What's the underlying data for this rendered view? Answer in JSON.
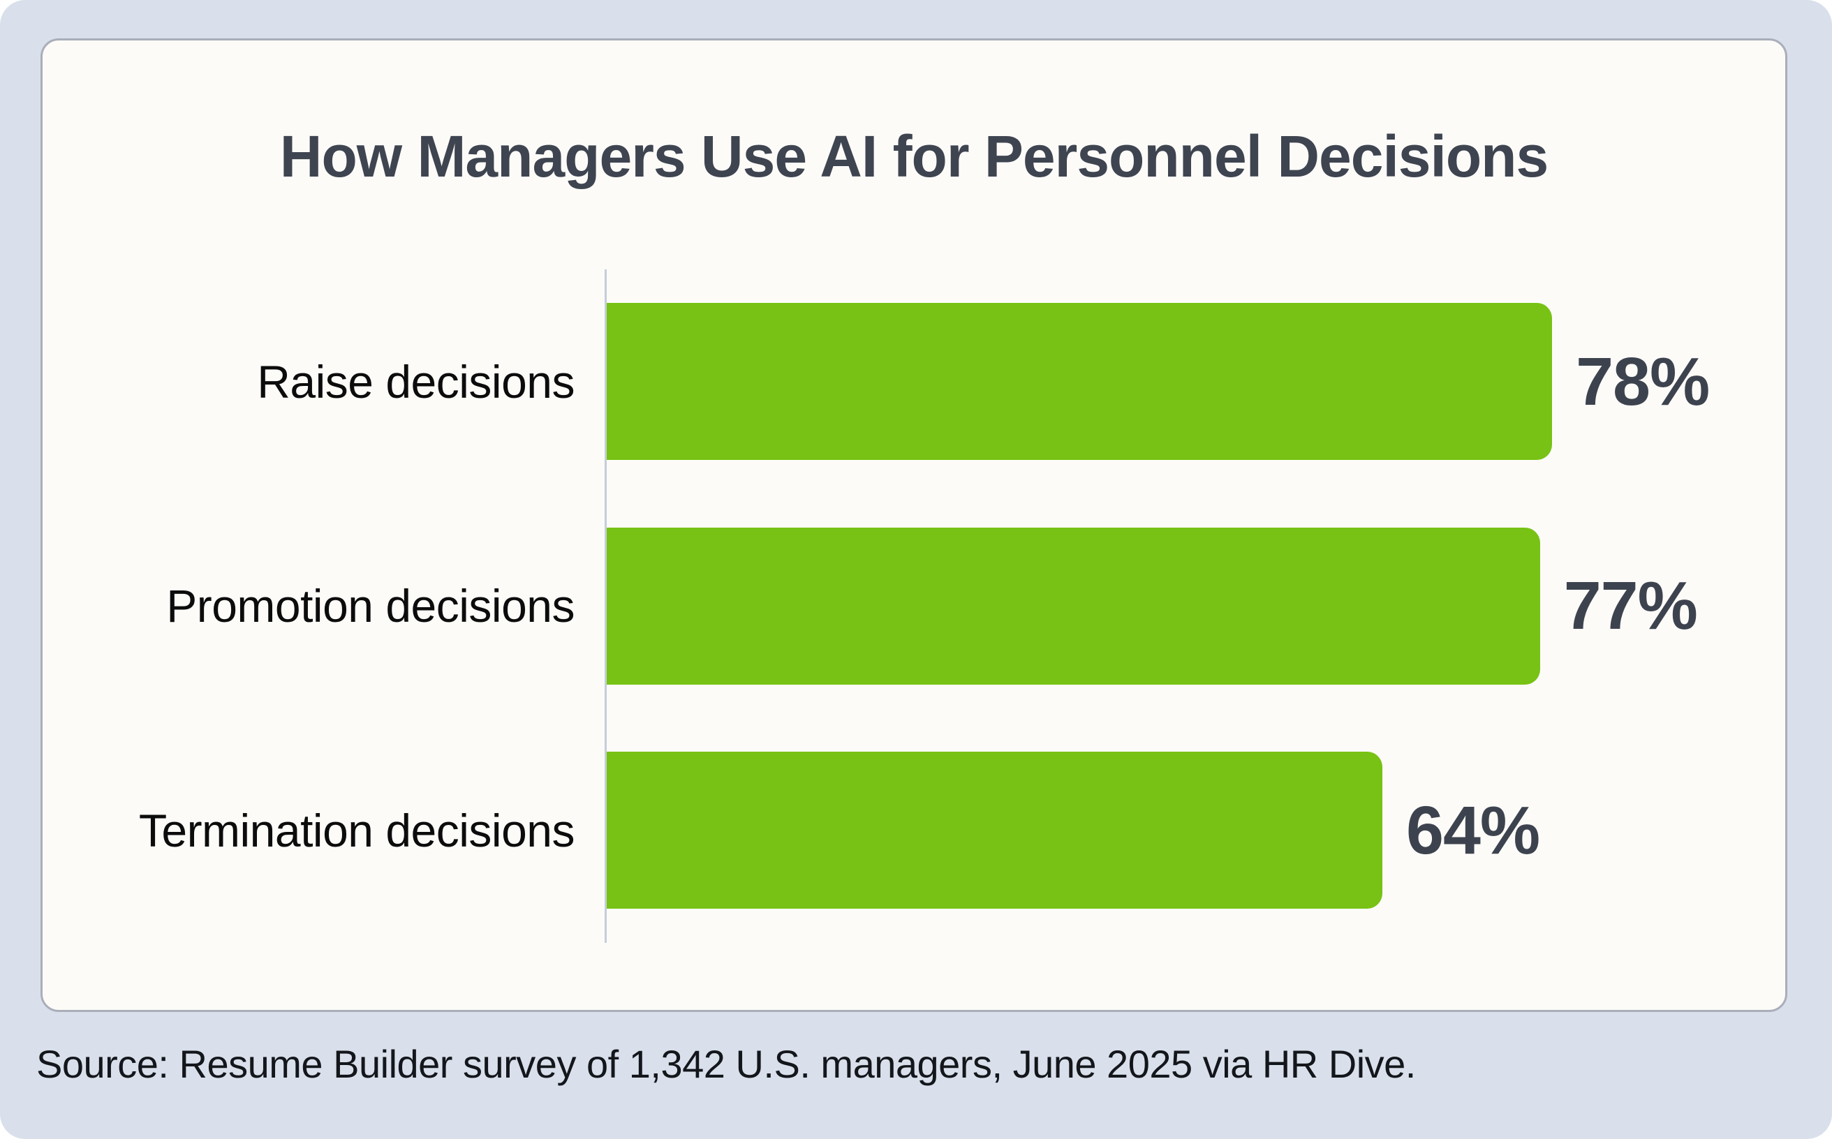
{
  "page": {
    "background_color": "#d9e0eb",
    "outer_background_color": "#ffffff"
  },
  "card": {
    "background_color": "#fcfbf8",
    "border_color": "#a9aeb9"
  },
  "chart_data": {
    "type": "bar",
    "orientation": "horizontal",
    "title": "How Managers Use AI for Personnel Decisions",
    "categories": [
      "Raise decisions",
      "Promotion decisions",
      "Termination decisions"
    ],
    "values": [
      78,
      77,
      64
    ],
    "value_labels": [
      "78%",
      "77%",
      "64%"
    ],
    "unit": "%",
    "xlim": [
      0,
      100
    ],
    "grid": false,
    "legend": false,
    "bar_color": "#77c214",
    "title_color": "#3e4450",
    "label_color": "#0c0c0c",
    "value_color": "#3d434e",
    "axis_line_color": "#c5ced9"
  },
  "source": {
    "text": "Source: Resume Builder survey of 1,342 U.S. managers, June 2025 via HR Dive."
  }
}
